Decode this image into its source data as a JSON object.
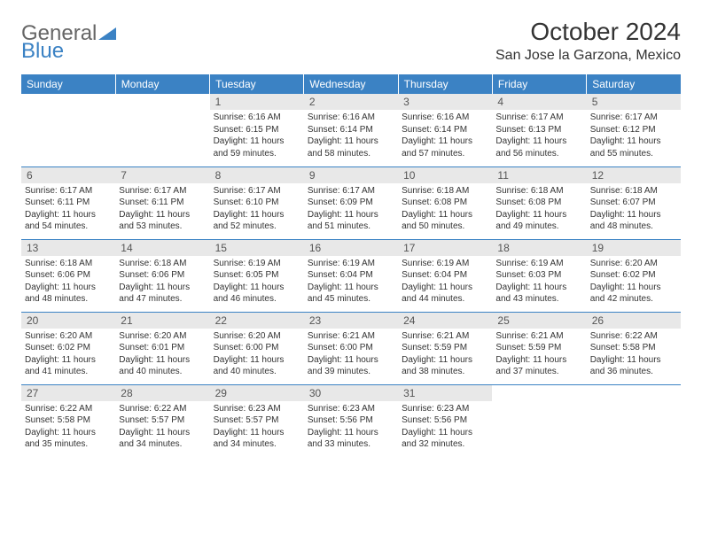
{
  "logo": {
    "text1": "General",
    "text2": "Blue"
  },
  "title": "October 2024",
  "location": "San Jose la Garzona, Mexico",
  "colors": {
    "header_bg": "#3b82c4",
    "header_text": "#ffffff",
    "daynum_bg": "#e8e8e8",
    "border": "#3b82c4"
  },
  "weekdays": [
    "Sunday",
    "Monday",
    "Tuesday",
    "Wednesday",
    "Thursday",
    "Friday",
    "Saturday"
  ],
  "weeks": [
    [
      null,
      null,
      {
        "n": "1",
        "sunrise": "6:16 AM",
        "sunset": "6:15 PM",
        "daylight": "11 hours and 59 minutes."
      },
      {
        "n": "2",
        "sunrise": "6:16 AM",
        "sunset": "6:14 PM",
        "daylight": "11 hours and 58 minutes."
      },
      {
        "n": "3",
        "sunrise": "6:16 AM",
        "sunset": "6:14 PM",
        "daylight": "11 hours and 57 minutes."
      },
      {
        "n": "4",
        "sunrise": "6:17 AM",
        "sunset": "6:13 PM",
        "daylight": "11 hours and 56 minutes."
      },
      {
        "n": "5",
        "sunrise": "6:17 AM",
        "sunset": "6:12 PM",
        "daylight": "11 hours and 55 minutes."
      }
    ],
    [
      {
        "n": "6",
        "sunrise": "6:17 AM",
        "sunset": "6:11 PM",
        "daylight": "11 hours and 54 minutes."
      },
      {
        "n": "7",
        "sunrise": "6:17 AM",
        "sunset": "6:11 PM",
        "daylight": "11 hours and 53 minutes."
      },
      {
        "n": "8",
        "sunrise": "6:17 AM",
        "sunset": "6:10 PM",
        "daylight": "11 hours and 52 minutes."
      },
      {
        "n": "9",
        "sunrise": "6:17 AM",
        "sunset": "6:09 PM",
        "daylight": "11 hours and 51 minutes."
      },
      {
        "n": "10",
        "sunrise": "6:18 AM",
        "sunset": "6:08 PM",
        "daylight": "11 hours and 50 minutes."
      },
      {
        "n": "11",
        "sunrise": "6:18 AM",
        "sunset": "6:08 PM",
        "daylight": "11 hours and 49 minutes."
      },
      {
        "n": "12",
        "sunrise": "6:18 AM",
        "sunset": "6:07 PM",
        "daylight": "11 hours and 48 minutes."
      }
    ],
    [
      {
        "n": "13",
        "sunrise": "6:18 AM",
        "sunset": "6:06 PM",
        "daylight": "11 hours and 48 minutes."
      },
      {
        "n": "14",
        "sunrise": "6:18 AM",
        "sunset": "6:06 PM",
        "daylight": "11 hours and 47 minutes."
      },
      {
        "n": "15",
        "sunrise": "6:19 AM",
        "sunset": "6:05 PM",
        "daylight": "11 hours and 46 minutes."
      },
      {
        "n": "16",
        "sunrise": "6:19 AM",
        "sunset": "6:04 PM",
        "daylight": "11 hours and 45 minutes."
      },
      {
        "n": "17",
        "sunrise": "6:19 AM",
        "sunset": "6:04 PM",
        "daylight": "11 hours and 44 minutes."
      },
      {
        "n": "18",
        "sunrise": "6:19 AM",
        "sunset": "6:03 PM",
        "daylight": "11 hours and 43 minutes."
      },
      {
        "n": "19",
        "sunrise": "6:20 AM",
        "sunset": "6:02 PM",
        "daylight": "11 hours and 42 minutes."
      }
    ],
    [
      {
        "n": "20",
        "sunrise": "6:20 AM",
        "sunset": "6:02 PM",
        "daylight": "11 hours and 41 minutes."
      },
      {
        "n": "21",
        "sunrise": "6:20 AM",
        "sunset": "6:01 PM",
        "daylight": "11 hours and 40 minutes."
      },
      {
        "n": "22",
        "sunrise": "6:20 AM",
        "sunset": "6:00 PM",
        "daylight": "11 hours and 40 minutes."
      },
      {
        "n": "23",
        "sunrise": "6:21 AM",
        "sunset": "6:00 PM",
        "daylight": "11 hours and 39 minutes."
      },
      {
        "n": "24",
        "sunrise": "6:21 AM",
        "sunset": "5:59 PM",
        "daylight": "11 hours and 38 minutes."
      },
      {
        "n": "25",
        "sunrise": "6:21 AM",
        "sunset": "5:59 PM",
        "daylight": "11 hours and 37 minutes."
      },
      {
        "n": "26",
        "sunrise": "6:22 AM",
        "sunset": "5:58 PM",
        "daylight": "11 hours and 36 minutes."
      }
    ],
    [
      {
        "n": "27",
        "sunrise": "6:22 AM",
        "sunset": "5:58 PM",
        "daylight": "11 hours and 35 minutes."
      },
      {
        "n": "28",
        "sunrise": "6:22 AM",
        "sunset": "5:57 PM",
        "daylight": "11 hours and 34 minutes."
      },
      {
        "n": "29",
        "sunrise": "6:23 AM",
        "sunset": "5:57 PM",
        "daylight": "11 hours and 34 minutes."
      },
      {
        "n": "30",
        "sunrise": "6:23 AM",
        "sunset": "5:56 PM",
        "daylight": "11 hours and 33 minutes."
      },
      {
        "n": "31",
        "sunrise": "6:23 AM",
        "sunset": "5:56 PM",
        "daylight": "11 hours and 32 minutes."
      },
      null,
      null
    ]
  ],
  "labels": {
    "sunrise": "Sunrise:",
    "sunset": "Sunset:",
    "daylight": "Daylight:"
  }
}
